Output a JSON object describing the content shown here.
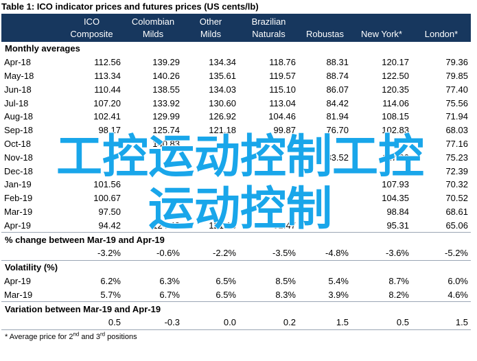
{
  "title": "Table 1:  ICO indicator prices and futures prices (US cents/lb)",
  "columns": [
    {
      "top": "ICO",
      "bottom": "Composite"
    },
    {
      "top": "Colombian",
      "bottom": "Milds"
    },
    {
      "top": "Other",
      "bottom": "Milds"
    },
    {
      "top": "Brazilian",
      "bottom": "Naturals"
    },
    {
      "top": "",
      "bottom": "Robustas"
    },
    {
      "top": "",
      "bottom": "New York*"
    },
    {
      "top": "",
      "bottom": "London*"
    }
  ],
  "sections": [
    {
      "title": "Monthly averages",
      "rows": [
        {
          "label": "Apr-18",
          "values": [
            "112.56",
            "139.29",
            "134.34",
            "118.76",
            "88.31",
            "120.17",
            "79.36"
          ]
        },
        {
          "label": "May-18",
          "values": [
            "113.34",
            "140.26",
            "135.61",
            "119.57",
            "88.74",
            "122.50",
            "79.85"
          ]
        },
        {
          "label": "Jun-18",
          "values": [
            "110.44",
            "138.55",
            "134.03",
            "115.10",
            "86.07",
            "120.35",
            "77.40"
          ]
        },
        {
          "label": "Jul-18",
          "values": [
            "107.20",
            "133.92",
            "130.60",
            "113.04",
            "84.42",
            "114.06",
            "75.56"
          ]
        },
        {
          "label": "Aug-18",
          "values": [
            "102.41",
            "129.99",
            "126.92",
            "104.46",
            "81.94",
            "108.15",
            "71.94"
          ]
        },
        {
          "label": "Sep-18",
          "values": [
            "98.17",
            "125.74",
            "121.18",
            "99.87",
            "76.70",
            "102.83",
            "68.03"
          ]
        },
        {
          "label": "Oct-18",
          "values": [
            "",
            "140.83",
            "",
            "",
            "",
            "",
            "77.16"
          ]
        },
        {
          "label": "Nov-18",
          "values": [
            "",
            "",
            "",
            "",
            "83.52",
            "117.90",
            "75.23"
          ]
        },
        {
          "label": "Dec-18",
          "values": [
            "",
            "",
            "",
            "",
            "",
            "",
            "72.39"
          ]
        },
        {
          "label": "Jan-19",
          "values": [
            "101.56",
            "",
            "",
            "",
            "",
            "107.93",
            "70.32"
          ]
        },
        {
          "label": "Feb-19",
          "values": [
            "100.67",
            "",
            "",
            "",
            "",
            "104.35",
            "70.52"
          ]
        },
        {
          "label": "Mar-19",
          "values": [
            "97.50",
            "",
            "",
            "",
            "",
            "98.84",
            "68.61"
          ]
        },
        {
          "label": "Apr-19",
          "values": [
            "94.42",
            "124.42",
            "121.13",
            "92.47",
            "",
            "95.31",
            "65.06"
          ]
        }
      ]
    },
    {
      "title": "% change between Mar-19 and Apr-19",
      "rows": [
        {
          "label": "",
          "values": [
            "-3.2%",
            "-0.6%",
            "-2.2%",
            "-3.5%",
            "-4.8%",
            "-3.6%",
            "-5.2%"
          ]
        }
      ]
    },
    {
      "title": "Volatility (%)",
      "rows": [
        {
          "label": "Apr-19",
          "values": [
            "6.2%",
            "6.3%",
            "6.5%",
            "8.5%",
            "5.4%",
            "8.7%",
            "6.0%"
          ]
        },
        {
          "label": "Mar-19",
          "values": [
            "5.7%",
            "6.7%",
            "6.5%",
            "8.3%",
            "3.9%",
            "8.2%",
            "4.6%"
          ]
        }
      ]
    },
    {
      "title": "Variation between Mar-19 and Apr-19",
      "rows": [
        {
          "label": "",
          "values": [
            "0.5",
            "-0.3",
            "0.0",
            "0.2",
            "1.5",
            "0.5",
            "1.5"
          ]
        }
      ]
    }
  ],
  "footnote": {
    "pre": "* Average price for 2",
    "sup1": "nd",
    "mid": " and 3",
    "sup2": "rd",
    "post": " positions"
  },
  "watermark": {
    "line1": "工控运动控制工控",
    "line2": "运动控制"
  },
  "colors": {
    "header_bg": "#17375e",
    "header_text": "#ffffff",
    "watermark": "#19a6ea"
  }
}
